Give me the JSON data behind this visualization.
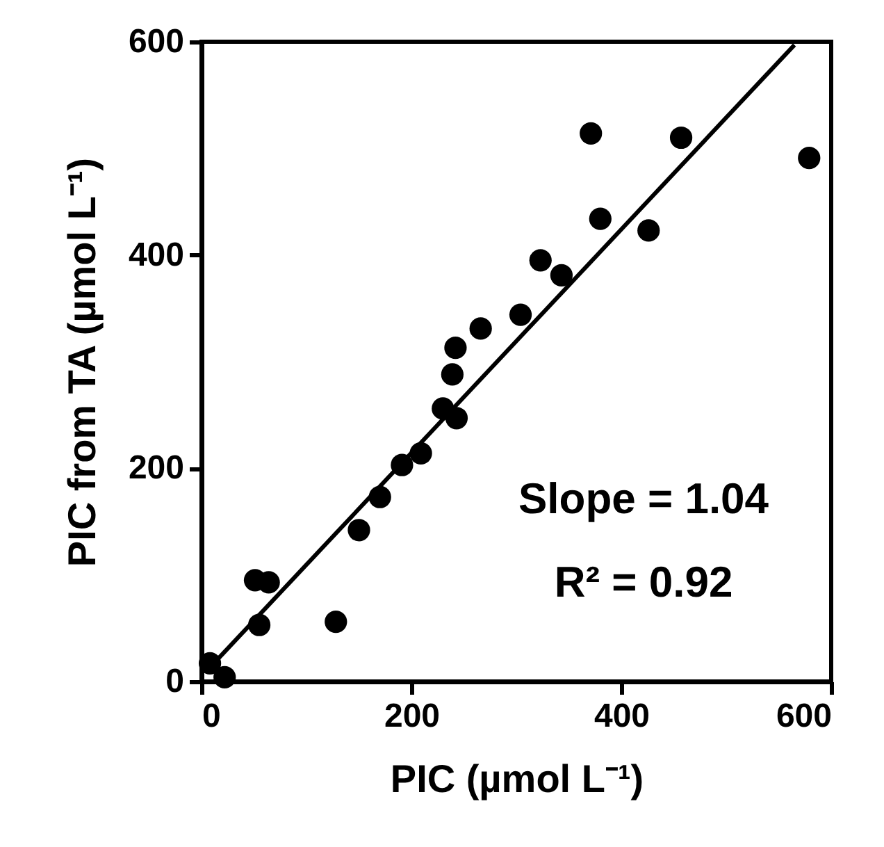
{
  "chart_data": {
    "type": "scatter",
    "xlabel": "PIC (µmol L⁻¹)",
    "ylabel": "PIC from TA (µmol L⁻¹)",
    "xlim": [
      0,
      600
    ],
    "ylim": [
      0,
      600
    ],
    "xticks": [
      0,
      200,
      400,
      600
    ],
    "yticks": [
      0,
      200,
      400,
      600
    ],
    "grid": false,
    "series": [
      {
        "color": "#000000",
        "marker": "circle",
        "x": [
          8,
          22,
          51,
          64,
          55,
          128,
          150,
          170,
          191,
          209,
          230,
          243,
          239,
          242,
          266,
          304,
          323,
          343,
          371,
          380,
          426,
          457,
          579
        ],
        "values": [
          17,
          4,
          95,
          93,
          53,
          56,
          142,
          173,
          203,
          214,
          256,
          247,
          288,
          313,
          331,
          344,
          395,
          381,
          514,
          434,
          423,
          510,
          491
        ]
      },
      {
        "type": "line",
        "color": "#000000",
        "line_style": "solid",
        "marker": "none",
        "x": [
          5,
          565
        ],
        "values": [
          10,
          597
        ]
      }
    ],
    "annotations": [
      "Slope = 1.04",
      "R² = 0.92"
    ]
  }
}
